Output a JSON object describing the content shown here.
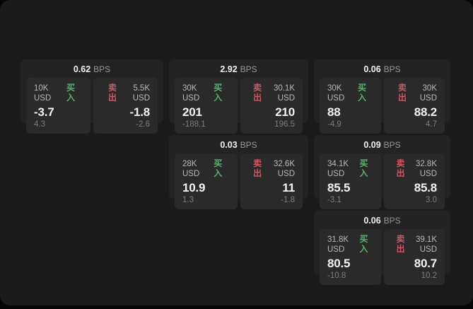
{
  "colors": {
    "buy": "#55b46e",
    "sell": "#d15864",
    "panel_bg": "#1b1b1c",
    "card_bg": "#232324",
    "subpanel_bg": "#2a2a2b"
  },
  "cards": [
    {
      "bps_value": "0.62",
      "bps_unit": "BPS",
      "buy": {
        "amount": "10K USD",
        "side_label": "买入",
        "value": "-3.7",
        "delta": "4.3"
      },
      "sell": {
        "amount": "5.5K USD",
        "side_label": "卖出",
        "value": "-1.8",
        "delta": "-2.6"
      }
    },
    {
      "bps_value": "2.92",
      "bps_unit": "BPS",
      "buy": {
        "amount": "30K USD",
        "side_label": "买入",
        "value": "201",
        "delta": "-188.1"
      },
      "sell": {
        "amount": "30.1K USD",
        "side_label": "卖出",
        "value": "210",
        "delta": "196.5"
      }
    },
    {
      "bps_value": "0.06",
      "bps_unit": "BPS",
      "buy": {
        "amount": "30K USD",
        "side_label": "买入",
        "value": "88",
        "delta": "-4.9"
      },
      "sell": {
        "amount": "30K USD",
        "side_label": "卖出",
        "value": "88.2",
        "delta": "4.7"
      }
    },
    {
      "bps_value": "0.03",
      "bps_unit": "BPS",
      "buy": {
        "amount": "28K USD",
        "side_label": "买入",
        "value": "10.9",
        "delta": "1.3"
      },
      "sell": {
        "amount": "32.6K USD",
        "side_label": "卖出",
        "value": "11",
        "delta": "-1.8"
      }
    },
    {
      "bps_value": "0.09",
      "bps_unit": "BPS",
      "buy": {
        "amount": "34.1K USD",
        "side_label": "买入",
        "value": "85.5",
        "delta": "-3.1"
      },
      "sell": {
        "amount": "32.8K USD",
        "side_label": "卖出",
        "value": "85.8",
        "delta": "3.0"
      }
    },
    {
      "bps_value": "0.06",
      "bps_unit": "BPS",
      "buy": {
        "amount": "31.8K USD",
        "side_label": "买入",
        "value": "80.5",
        "delta": "-10.8"
      },
      "sell": {
        "amount": "39.1K USD",
        "side_label": "卖出",
        "value": "80.7",
        "delta": "10.2"
      }
    }
  ]
}
